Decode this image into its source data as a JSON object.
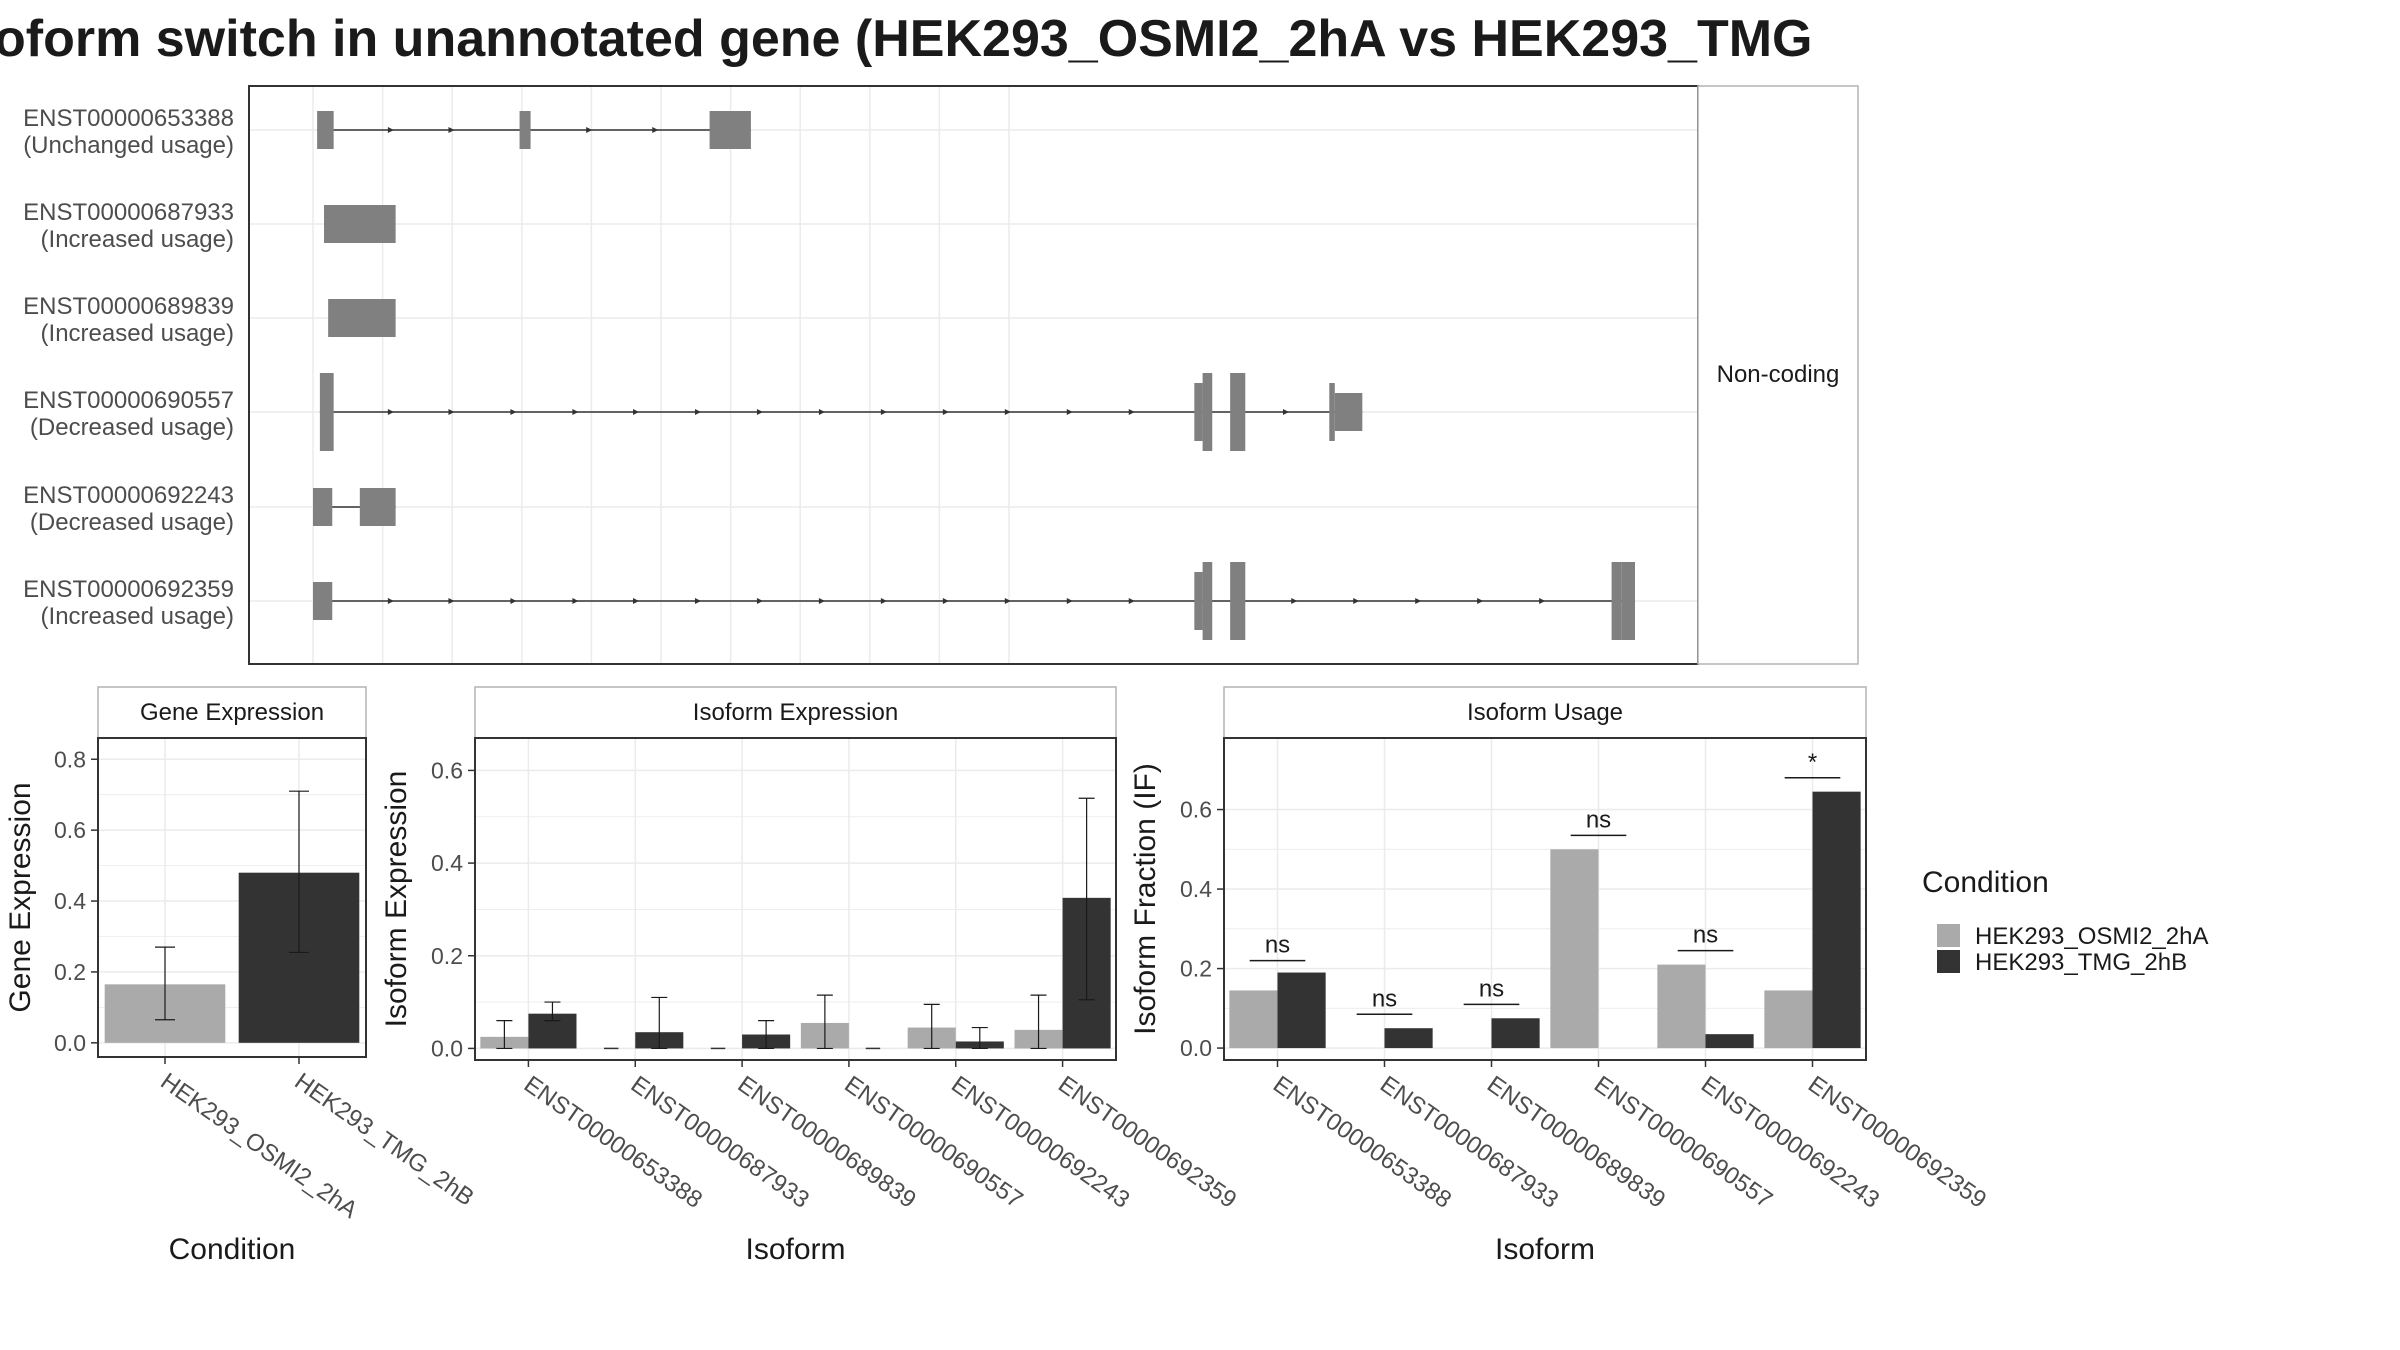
{
  "title": "oform switch in unannotated gene (HEK293_OSMI2_2hA vs HEK293_TMG",
  "colors": {
    "condA": "#aaaaaa",
    "condB": "#333333",
    "exon": "#808080",
    "grid": "#ebebeb",
    "strip": "#ffffff"
  },
  "chart_data": [
    {
      "type": "other",
      "panel": "isoform-structure",
      "facet_label": "Non-coding",
      "isoforms": [
        {
          "id": "ENST00000653388",
          "usage": "(Unchanged usage)",
          "exons": [
            [
              0.3,
              1.5
            ],
            [
              15.0,
              15.8
            ],
            [
              28.8,
              31.8
            ]
          ],
          "arrows": [
            5.8,
            10.2,
            20.2,
            25.0
          ]
        },
        {
          "id": "ENST00000687933",
          "usage": "(Increased usage)",
          "exons": [
            [
              0.8,
              6.0
            ]
          ],
          "arrows": []
        },
        {
          "id": "ENST00000689839",
          "usage": "(Increased usage)",
          "exons": [
            [
              1.1,
              6.0
            ]
          ],
          "arrows": []
        },
        {
          "id": "ENST00000690557",
          "usage": "(Decreased usage)",
          "exons": [
            [
              0.5,
              1.5
            ],
            [
              64.0,
              64.6
            ],
            [
              64.6,
              65.3
            ],
            [
              66.6,
              67.7
            ],
            [
              73.8,
              74.2
            ],
            [
              74.2,
              76.2
            ]
          ],
          "arrows": [
            5.8,
            10.2,
            14.7,
            19.2,
            23.6,
            28.1,
            32.6,
            37.1,
            41.6,
            46.1,
            50.6,
            55.1,
            59.6,
            70.8
          ]
        },
        {
          "id": "ENST00000692243",
          "usage": "(Decreased usage)",
          "exons": [
            [
              0.0,
              1.4
            ],
            [
              3.4,
              6.0
            ]
          ],
          "arrows": []
        },
        {
          "id": "ENST00000692359",
          "usage": "(Increased usage)",
          "exons": [
            [
              0.0,
              1.4
            ],
            [
              64.0,
              64.6
            ],
            [
              64.6,
              65.3
            ],
            [
              66.6,
              67.7
            ],
            [
              94.3,
              95.0
            ],
            [
              95.0,
              96.0
            ]
          ],
          "arrows": [
            5.8,
            10.2,
            14.7,
            19.2,
            23.6,
            28.1,
            32.6,
            37.1,
            41.6,
            46.1,
            50.6,
            55.1,
            59.6,
            71.4,
            75.9,
            80.4,
            84.9,
            89.4
          ]
        }
      ]
    },
    {
      "type": "bar",
      "panel": "gene-expression",
      "strip": "Gene Expression",
      "categories": [
        "HEK293_OSMI2_2hA",
        "HEK293_TMG_2hB"
      ],
      "values": [
        0.165,
        0.48
      ],
      "errors": [
        [
          0.065,
          0.27
        ],
        [
          0.255,
          0.71
        ]
      ],
      "ylabel": "Gene Expression",
      "xlabel": "Condition",
      "ylim": [
        -0.04,
        0.86
      ],
      "yticks": [
        0.0,
        0.2,
        0.4,
        0.6,
        0.8
      ],
      "ytick_labels": [
        "0.0",
        "0.2",
        "0.4",
        "0.6",
        "0.8"
      ]
    },
    {
      "type": "bar",
      "panel": "isoform-expression",
      "strip": "Isoform Expression",
      "categories": [
        "ENST00000653388",
        "ENST00000687933",
        "ENST00000689839",
        "ENST00000690557",
        "ENST00000692243",
        "ENST00000692359"
      ],
      "series": [
        {
          "name": "HEK293_OSMI2_2hA",
          "values": [
            0.025,
            0.0,
            0.0,
            0.055,
            0.045,
            0.04
          ],
          "errors": [
            [
              0.0,
              0.06
            ],
            null,
            null,
            [
              0.0,
              0.115
            ],
            [
              0.0,
              0.095
            ],
            [
              0.0,
              0.115
            ]
          ]
        },
        {
          "name": "HEK293_TMG_2hB",
          "values": [
            0.075,
            0.035,
            0.03,
            0.0,
            0.015,
            0.325
          ],
          "errors": [
            [
              0.06,
              0.1
            ],
            [
              0.0,
              0.11
            ],
            [
              0.0,
              0.06
            ],
            null,
            [
              0.0,
              0.045
            ],
            [
              0.105,
              0.54
            ]
          ]
        }
      ],
      "ylabel": "Isoform Expression",
      "xlabel": "Isoform",
      "ylim": [
        -0.025,
        0.67
      ],
      "yticks": [
        0.0,
        0.2,
        0.4,
        0.6
      ],
      "ytick_labels": [
        "0.0",
        "0.2",
        "0.4",
        "0.6"
      ]
    },
    {
      "type": "bar",
      "panel": "isoform-usage",
      "strip": "Isoform Usage",
      "categories": [
        "ENST00000653388",
        "ENST00000687933",
        "ENST00000689839",
        "ENST00000690557",
        "ENST00000692243",
        "ENST00000692359"
      ],
      "series": [
        {
          "name": "HEK293_OSMI2_2hA",
          "values": [
            0.145,
            0.0,
            0.0,
            0.5,
            0.21,
            0.145
          ]
        },
        {
          "name": "HEK293_TMG_2hB",
          "values": [
            0.19,
            0.05,
            0.075,
            0.0,
            0.035,
            0.645
          ]
        }
      ],
      "significance": [
        "ns",
        "ns",
        "ns",
        "ns",
        "ns",
        "*"
      ],
      "significance_y": [
        0.22,
        0.085,
        0.11,
        0.535,
        0.245,
        0.68
      ],
      "ylabel": "Isoform Fraction (IF)",
      "xlabel": "Isoform",
      "ylim": [
        -0.03,
        0.78
      ],
      "yticks": [
        0.0,
        0.2,
        0.4,
        0.6
      ],
      "ytick_labels": [
        "0.0",
        "0.2",
        "0.4",
        "0.6"
      ]
    }
  ],
  "legend": {
    "title": "Condition",
    "items": [
      {
        "label": "HEK293_OSMI2_2hA",
        "color": "#aaaaaa"
      },
      {
        "label": "HEK293_TMG_2hB",
        "color": "#333333"
      }
    ]
  }
}
